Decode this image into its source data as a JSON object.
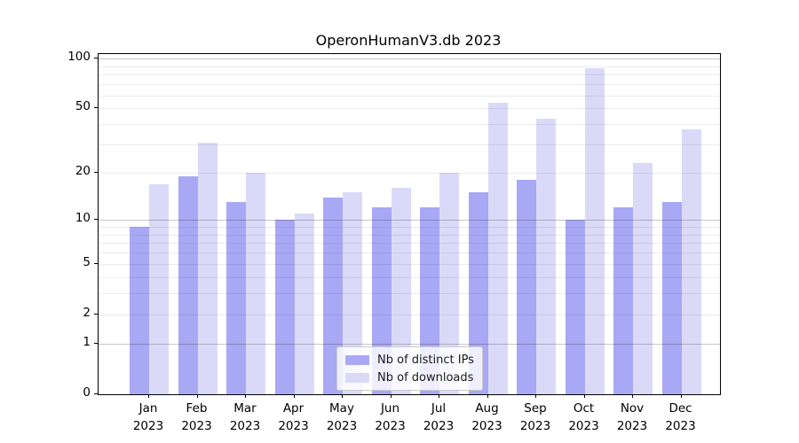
{
  "chart_data": {
    "type": "bar",
    "title": "OperonHumanV3.db 2023",
    "xlabel": "",
    "ylabel": "",
    "categories": [
      "Jan 2023",
      "Feb 2023",
      "Mar 2023",
      "Apr 2023",
      "May 2023",
      "Jun 2023",
      "Jul 2023",
      "Aug 2023",
      "Sep 2023",
      "Oct 2023",
      "Nov 2023",
      "Dec 2023"
    ],
    "series": [
      {
        "name": "Nb of distinct IPs",
        "color": "#a8a8f5",
        "values": [
          9,
          19,
          13,
          10,
          14,
          12,
          12,
          15,
          18,
          10,
          12,
          13
        ]
      },
      {
        "name": "Nb of downloads",
        "color": "#dadaf8",
        "values": [
          17,
          31,
          20,
          11,
          15,
          16,
          20,
          54,
          43,
          88,
          23,
          37
        ]
      }
    ],
    "yscale": "log10(1+y)",
    "yticks": [
      0,
      1,
      2,
      5,
      10,
      20,
      50,
      100
    ],
    "ylim": [
      0,
      106.6
    ],
    "grid": true,
    "legend": {
      "labels": [
        "Nb of distinct IPs",
        "Nb of downloads"
      ],
      "position": "lower center"
    }
  }
}
